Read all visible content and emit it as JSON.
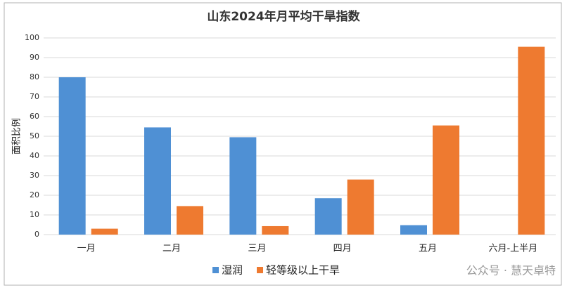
{
  "chart_data": {
    "type": "bar",
    "title": "山东2024年月平均干旱指数",
    "y_label": "面积比例",
    "categories": [
      "一月",
      "二月",
      "三月",
      "四月",
      "五月",
      "六月-上半月"
    ],
    "series": [
      {
        "name": "湿润",
        "color": "#4f90d4",
        "values": [
          80,
          54.5,
          49.5,
          18.5,
          4.8,
          null
        ]
      },
      {
        "name": "轻等级以上干旱",
        "color": "#ee7a30",
        "values": [
          3,
          14.5,
          4.3,
          28,
          55.5,
          95.5
        ]
      }
    ],
    "ylim": [
      0,
      100
    ],
    "yticks": [
      0,
      10,
      20,
      30,
      40,
      50,
      60,
      70,
      80,
      90,
      100
    ],
    "grid": true,
    "legend": "bottom",
    "watermark": "公众号 · 慧天卓特"
  }
}
